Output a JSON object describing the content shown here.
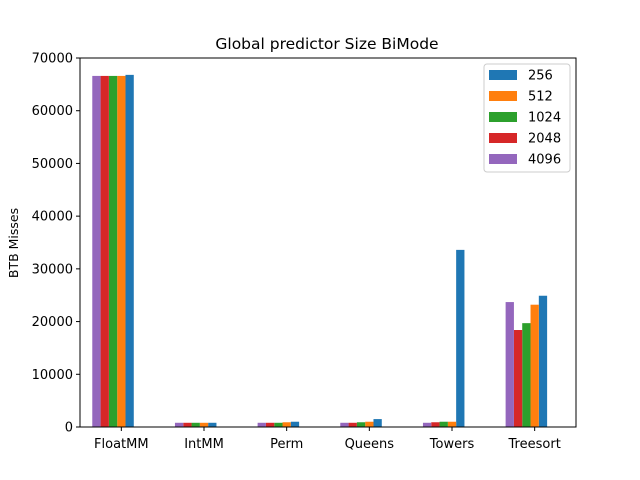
{
  "chart_data": {
    "type": "bar",
    "title": "Global predictor Size BiMode",
    "xlabel": "",
    "ylabel": "BTB Misses",
    "ylim": [
      0,
      70000
    ],
    "yticks": [
      0,
      10000,
      20000,
      30000,
      40000,
      50000,
      60000,
      70000
    ],
    "categories": [
      "FloatMM",
      "IntMM",
      "Perm",
      "Queens",
      "Towers",
      "Treesort"
    ],
    "legend_position": "top-right",
    "grid": false,
    "series": [
      {
        "name": "256",
        "color": "#1f77b4",
        "values": [
          66800,
          800,
          1000,
          1500,
          33600,
          24900
        ]
      },
      {
        "name": "512",
        "color": "#ff7f0e",
        "values": [
          66600,
          800,
          900,
          1000,
          1000,
          23200
        ]
      },
      {
        "name": "1024",
        "color": "#2ca02c",
        "values": [
          66600,
          800,
          800,
          900,
          1000,
          19700
        ]
      },
      {
        "name": "2048",
        "color": "#d62728",
        "values": [
          66600,
          800,
          800,
          800,
          900,
          18400
        ]
      },
      {
        "name": "4096",
        "color": "#9467bd",
        "values": [
          66600,
          800,
          800,
          800,
          800,
          23700
        ]
      }
    ]
  }
}
